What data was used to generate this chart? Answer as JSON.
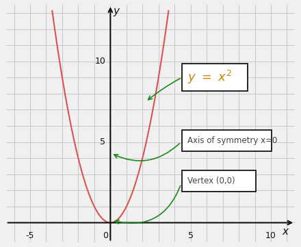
{
  "xlabel": "x",
  "ylabel": "y",
  "xlim": [
    -6.5,
    11.5
  ],
  "ylim": [
    -1.2,
    13.5
  ],
  "x_axis_left": -6.5,
  "x_axis_right": 11.5,
  "y_axis_bottom": -1.2,
  "y_axis_top": 13.5,
  "xtick_labels": [
    "-5",
    "0",
    "5",
    "10"
  ],
  "xtick_vals": [
    -5,
    0,
    5,
    10
  ],
  "ytick_labels": [
    "5",
    "10"
  ],
  "ytick_vals": [
    5,
    10
  ],
  "curve_color": "#d9534f",
  "curve_linewidth": 1.5,
  "grid_color": "#c8c8c8",
  "background_color": "#f0f0f0",
  "annotation_color": "#1a8a1a",
  "formula_color": "#c8860a",
  "box_axis_text": "Axis of symmetry x=0",
  "box_vertex_text": "Vertex (0,0)",
  "axis_color": "#111111",
  "text_color": "#555555"
}
